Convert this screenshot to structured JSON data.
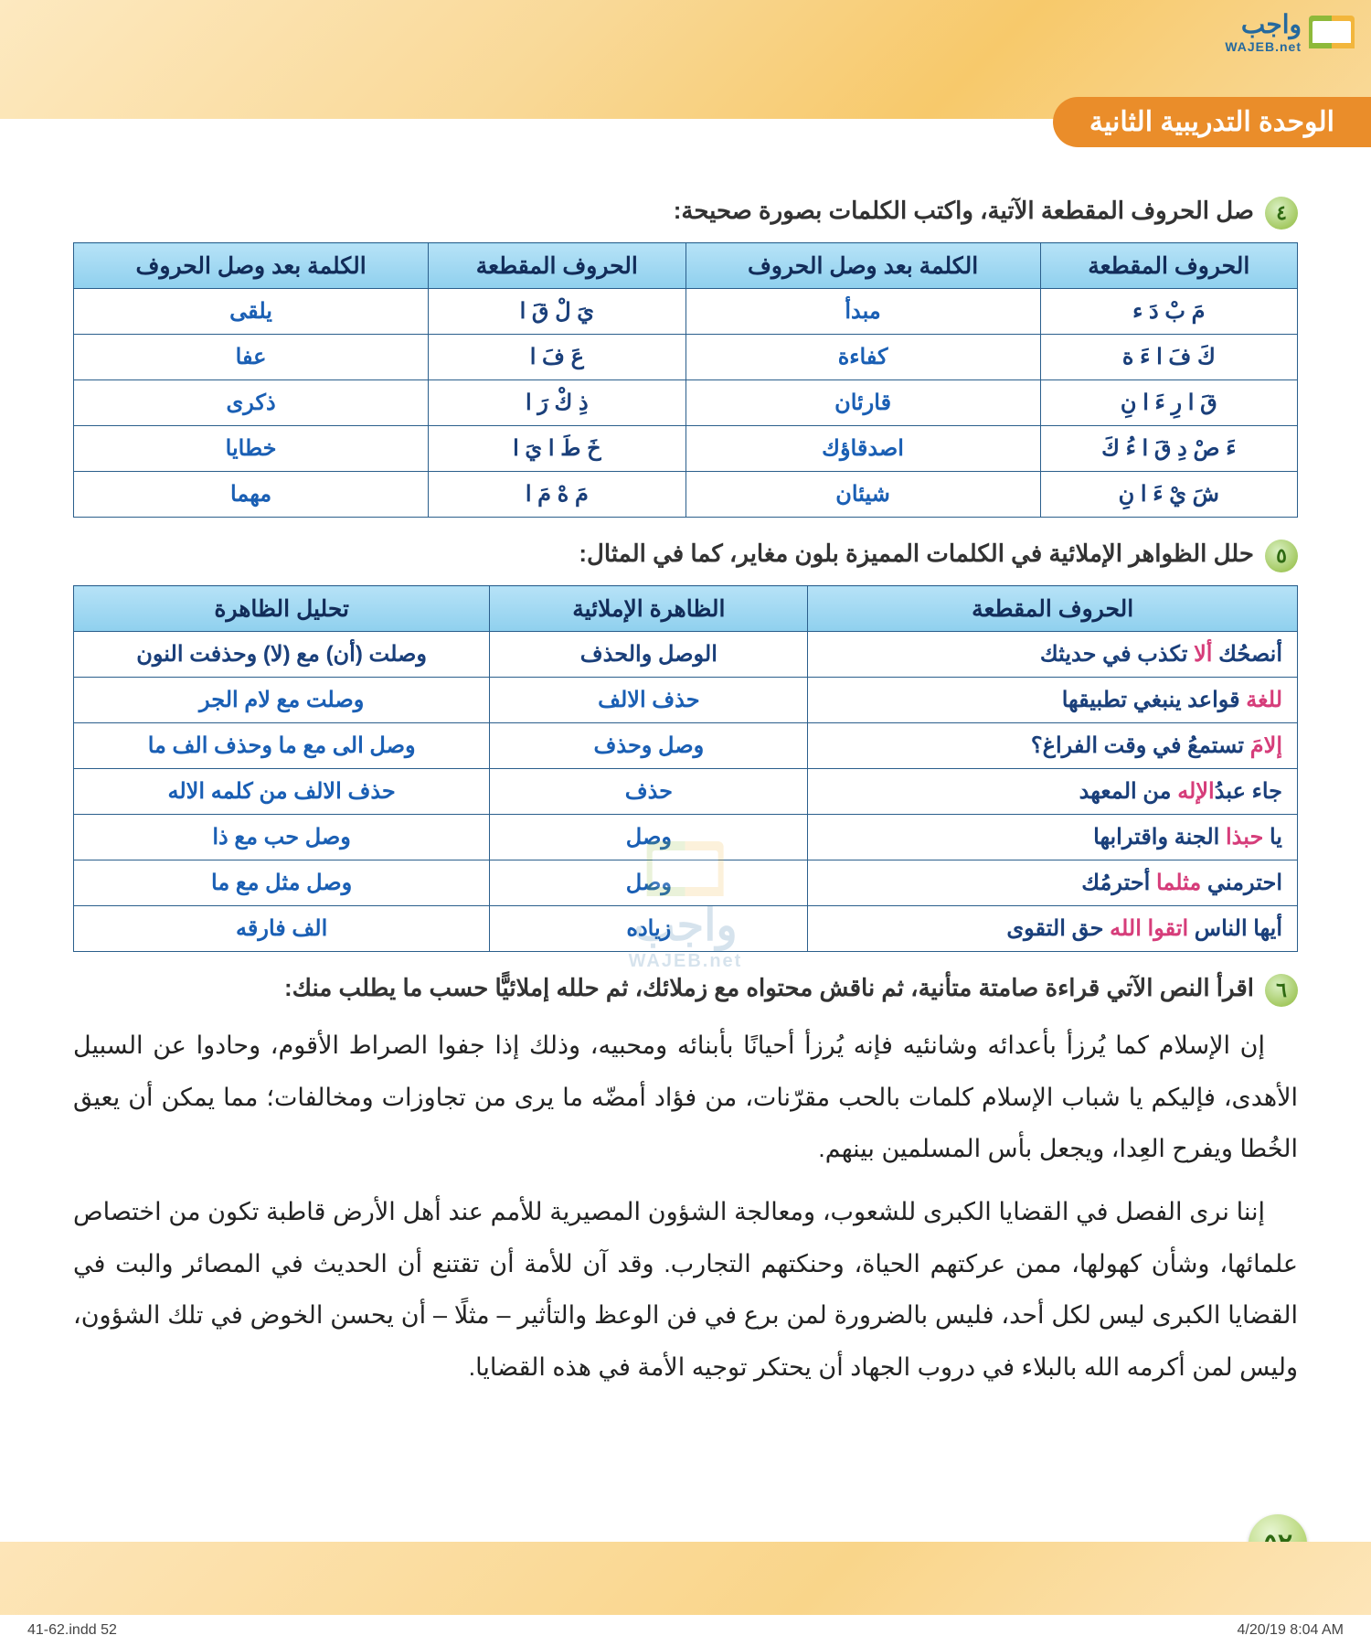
{
  "logo": {
    "main": "واجب",
    "sub": "WAJEB.net"
  },
  "unit_title": "الوحدة التدريبية الثانية",
  "q4": {
    "num": "٤",
    "text": "صل الحروف المقطعة الآتية، واكتب الكلمات بصورة صحيحة:",
    "headers": [
      "الحروف المقطعة",
      "الكلمة بعد وصل الحروف",
      "الحروف المقطعة",
      "الكلمة بعد وصل الحروف"
    ],
    "rows": [
      [
        "مَ بْ دَ ء",
        "مبدأ",
        "يَ لْ قَ ا",
        "يلقى"
      ],
      [
        "كَ فَ ا ءَ ة",
        "كفاءة",
        "عَ فَ ا",
        "عفا"
      ],
      [
        "قَ ا رِ ءَ ا نِ",
        "قارئان",
        "ذِ كْ رَ ا",
        "ذكرى"
      ],
      [
        "ءَ صْ دِ قَ ا ءُ كَ",
        "اصدقاؤك",
        "خَ طَ ا يَ ا",
        "خطايا"
      ],
      [
        "شَ يْ ءَ ا نِ",
        "شيئان",
        "مَ هْ مَ ا",
        "مهما"
      ]
    ]
  },
  "q5": {
    "num": "٥",
    "text": "حلل الظواهر الإملائية في الكلمات المميزة بلون مغاير، كما في المثال:",
    "headers": [
      "الحروف المقطعة",
      "الظاهرة الإملائية",
      "تحليل الظاهرة"
    ],
    "rows": [
      {
        "c1_pre": "أنصحُك ",
        "c1_hi": "ألا",
        "c1_post": " تكذب في حديثك",
        "c2": "الوصل والحذف",
        "c3": "وصلت (أن) مع (لا) وحذفت النون"
      },
      {
        "c1_pre": "",
        "c1_hi": "للغة",
        "c1_post": " قواعد ينبغي تطبيقها",
        "c2": "حذف الالف",
        "c3": "وصلت مع لام الجر"
      },
      {
        "c1_pre": "",
        "c1_hi": "إلامَ",
        "c1_post": " تستمعُ في وقت الفراغ؟",
        "c2": "وصل وحذف",
        "c3": "وصل الى مع ما وحذف الف ما"
      },
      {
        "c1_pre": "جاء عبدُ",
        "c1_hi": "الإله",
        "c1_post": " من المعهد",
        "c2": "حذف",
        "c3": "حذف الالف من كلمه الاله"
      },
      {
        "c1_pre": "يا ",
        "c1_hi": "حبذا",
        "c1_post": " الجنة واقترابها",
        "c2": "وصل",
        "c3": "وصل حب مع ذا"
      },
      {
        "c1_pre": "احترمني ",
        "c1_hi": "مثلما",
        "c1_post": " أحترمُك",
        "c2": "وصل",
        "c3": "وصل مثل مع ما"
      },
      {
        "c1_pre": "أيها الناس ",
        "c1_hi": "اتقوا الله",
        "c1_post": " حق التقوى",
        "c2": "زياده",
        "c3": "الف فارقه"
      }
    ]
  },
  "q6": {
    "num": "٦",
    "text": "اقرأ النص الآتي قراءة صامتة متأنية، ثم ناقش محتواه مع زملائك، ثم حلله إملائيًّا حسب ما يطلب منك:",
    "p1": "إن الإسلام كما يُرزأ بأعدائه وشانئيه فإنه يُرزأ أحيانًا بأبنائه ومحبيه، وذلك إذا جفوا الصراط الأقوم، وحادوا عن السبيل الأهدى، فإليكم يا شباب الإسلام كلمات بالحب مقرّنات، من فؤاد أمضّه ما يرى من تجاوزات ومخالفات؛ مما يمكن أن يعيق الخُطا ويفرح العِدا، ويجعل بأس المسلمين بينهم.",
    "p2": "إننا نرى الفصل في القضايا الكبرى للشعوب، ومعالجة الشؤون المصيرية للأمم عند أهل الأرض قاطبة تكون  من اختصاص علمائها، وشأن كهولها، ممن عركتهم الحياة، وحنكتهم التجارب. وقد آن للأمة أن تقتنع أن الحديث في المصائر والبت في القضايا الكبرى ليس لكل أحد، فليس بالضرورة لمن برع في فن الوعظ والتأثير – مثلًا – أن يحسن الخوض في تلك الشؤون، وليس لمن أكرمه الله بالبلاء في دروب الجهاد أن يحتكر توجيه الأمة في هذه القضايا."
  },
  "page_number": "٥٢",
  "footer": {
    "left": "41-62.indd   52",
    "right": "4/20/19   8:04 AM"
  },
  "watermark": {
    "main": "واجب",
    "sub": "WAJEB.net"
  }
}
